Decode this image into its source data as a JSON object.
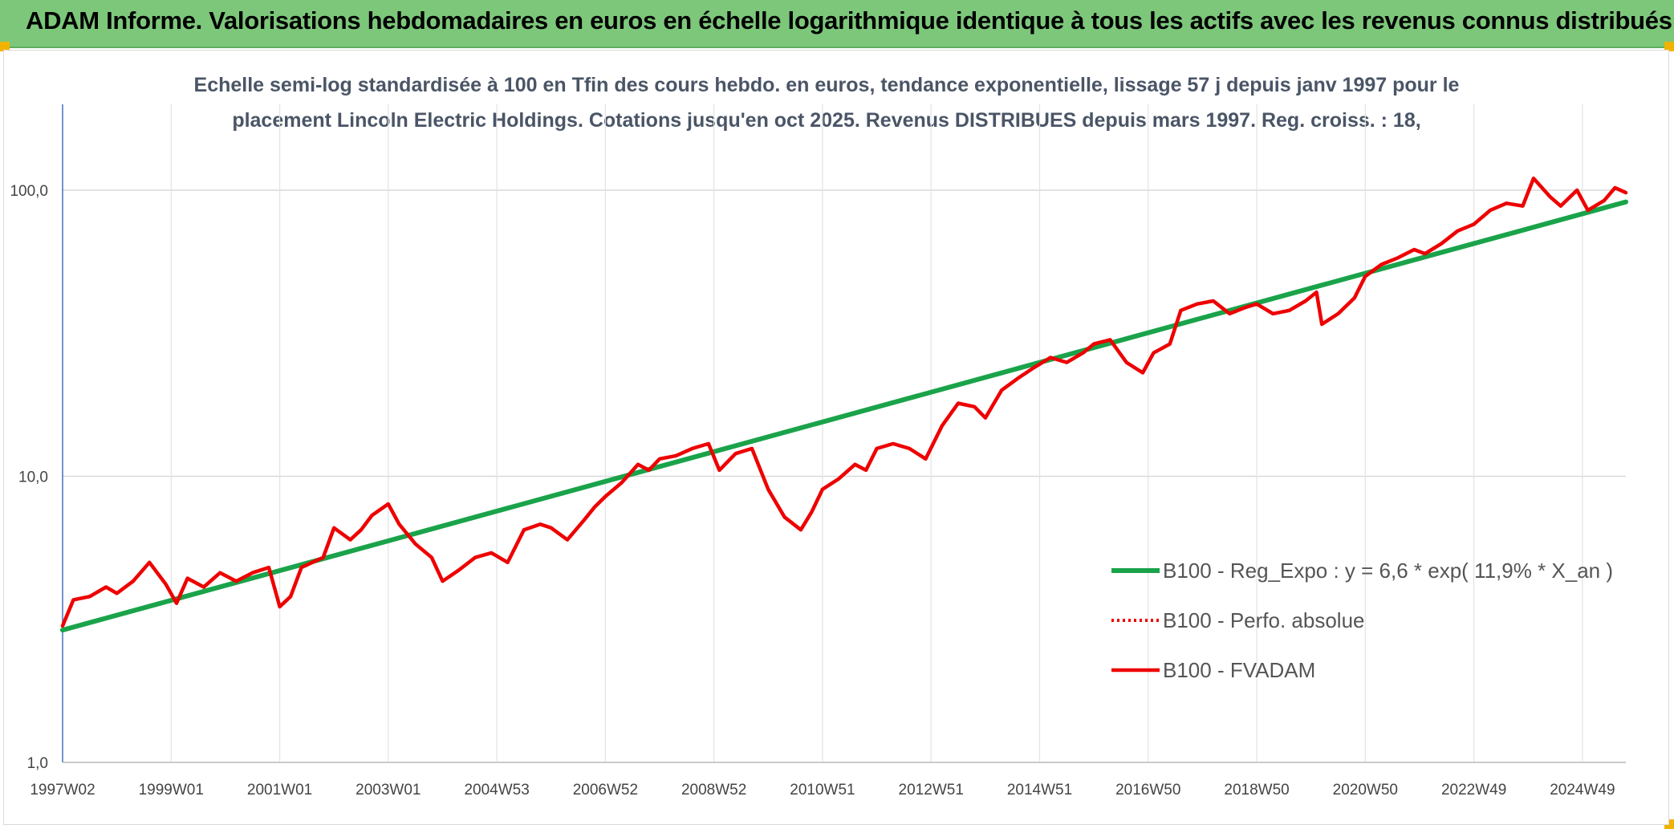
{
  "banner": {
    "title": "ADAM Informe. Valorisations hebdomadaires en euros en échelle logarithmique identique à tous les actifs avec les revenus connus distribués"
  },
  "colors": {
    "banner_bg": "#7dc77b",
    "trend": "#1aa34a",
    "series": "#ee0000",
    "corner": "#f0b400"
  },
  "chart_data": {
    "type": "line",
    "title": "Echelle semi-log standardisée à 100 en Tfin des cours hebdo. en euros, tendance exponentielle, lissage 57 j depuis janv 1997 pour le placement Lincoln Electric Holdings. Cotations jusqu'en oct 2025. Revenus DISTRIBUES depuis mars 1997. Reg. croiss. : 18,",
    "title_lines": [
      "Echelle semi-log standardisée à 100 en Tfin des cours hebdo. en euros, tendance exponentielle, lissage 57 j depuis janv 1997 pour le",
      "placement Lincoln Electric Holdings. Cotations jusqu'en oct 2025. Revenus DISTRIBUES depuis mars 1997. Reg. croiss. : 18,"
    ],
    "y_scale": "log",
    "ylim": [
      1,
      100
    ],
    "y_ticks": [
      {
        "value": 1,
        "label": "1,0"
      },
      {
        "value": 10,
        "label": "10,0"
      },
      {
        "value": 100,
        "label": "100,0"
      }
    ],
    "xlim": [
      1997.0,
      2025.8
    ],
    "x_ticks": [
      {
        "value": 1997.0,
        "label": "1997W02"
      },
      {
        "value": 1999.0,
        "label": "1999W01"
      },
      {
        "value": 2001.0,
        "label": "2001W01"
      },
      {
        "value": 2003.0,
        "label": "2003W01"
      },
      {
        "value": 2005.0,
        "label": "2004W53"
      },
      {
        "value": 2007.0,
        "label": "2006W52"
      },
      {
        "value": 2009.0,
        "label": "2008W52"
      },
      {
        "value": 2011.0,
        "label": "2010W51"
      },
      {
        "value": 2013.0,
        "label": "2012W51"
      },
      {
        "value": 2015.0,
        "label": "2014W51"
      },
      {
        "value": 2017.0,
        "label": "2016W50"
      },
      {
        "value": 2019.0,
        "label": "2018W50"
      },
      {
        "value": 2021.0,
        "label": "2020W50"
      },
      {
        "value": 2023.0,
        "label": "2022W49"
      },
      {
        "value": 2025.0,
        "label": "2024W49"
      }
    ],
    "grid": true,
    "legend_position": "lower-right",
    "series": [
      {
        "name": "B100 - Reg_Expo : y = 6,6 * exp( 11,9% *  X_an )",
        "style": "solid-thick",
        "color": "#1aa34a",
        "x": [
          1997.0,
          2025.8
        ],
        "y": [
          2.9,
          91.0
        ]
      },
      {
        "name": "B100 - Perfo. absolue",
        "style": "dotted",
        "color": "#ee0000",
        "x": [],
        "y": []
      },
      {
        "name": "B100 - FVADAM",
        "style": "solid",
        "color": "#ee0000",
        "x": [
          1997.0,
          1997.2,
          1997.5,
          1997.8,
          1998.0,
          1998.3,
          1998.6,
          1998.9,
          1999.1,
          1999.3,
          1999.6,
          1999.9,
          2000.2,
          2000.5,
          2000.8,
          2001.0,
          2001.2,
          2001.4,
          2001.6,
          2001.8,
          2002.0,
          2002.3,
          2002.5,
          2002.7,
          2003.0,
          2003.2,
          2003.5,
          2003.8,
          2004.0,
          2004.3,
          2004.6,
          2004.9,
          2005.2,
          2005.5,
          2005.8,
          2006.0,
          2006.3,
          2006.6,
          2006.8,
          2007.0,
          2007.3,
          2007.6,
          2007.8,
          2008.0,
          2008.3,
          2008.6,
          2008.9,
          2009.1,
          2009.4,
          2009.7,
          2010.0,
          2010.3,
          2010.6,
          2010.8,
          2011.0,
          2011.3,
          2011.6,
          2011.8,
          2012.0,
          2012.3,
          2012.6,
          2012.9,
          2013.2,
          2013.5,
          2013.8,
          2014.0,
          2014.3,
          2014.6,
          2014.9,
          2015.2,
          2015.5,
          2015.8,
          2016.0,
          2016.3,
          2016.6,
          2016.9,
          2017.1,
          2017.4,
          2017.6,
          2017.9,
          2018.2,
          2018.5,
          2018.8,
          2019.0,
          2019.3,
          2019.6,
          2019.9,
          2020.1,
          2020.2,
          2020.5,
          2020.8,
          2021.0,
          2021.3,
          2021.6,
          2021.9,
          2022.1,
          2022.4,
          2022.7,
          2023.0,
          2023.3,
          2023.6,
          2023.9,
          2024.1,
          2024.4,
          2024.6,
          2024.9,
          2025.1,
          2025.4,
          2025.6,
          2025.8
        ],
        "y": [
          3.0,
          3.7,
          3.8,
          4.1,
          3.9,
          4.3,
          5.0,
          4.2,
          3.6,
          4.4,
          4.1,
          4.6,
          4.3,
          4.6,
          4.8,
          3.5,
          3.8,
          4.8,
          5.0,
          5.2,
          6.6,
          6.0,
          6.5,
          7.3,
          8.0,
          6.8,
          5.8,
          5.2,
          4.3,
          4.7,
          5.2,
          5.4,
          5.0,
          6.5,
          6.8,
          6.6,
          6.0,
          7.0,
          7.8,
          8.5,
          9.5,
          11.0,
          10.5,
          11.5,
          11.8,
          12.5,
          13.0,
          10.5,
          12.0,
          12.5,
          9.0,
          7.2,
          6.5,
          7.5,
          9.0,
          9.8,
          11.0,
          10.5,
          12.5,
          13.0,
          12.5,
          11.5,
          15.0,
          18.0,
          17.5,
          16.0,
          20.0,
          22.0,
          24.0,
          26.0,
          25.0,
          27.0,
          29.0,
          30.0,
          25.0,
          23.0,
          27.0,
          29.0,
          38.0,
          40.0,
          41.0,
          37.0,
          39.0,
          40.0,
          37.0,
          38.0,
          41.0,
          44.0,
          34.0,
          37.0,
          42.0,
          50.0,
          55.0,
          58.0,
          62.0,
          60.0,
          65.0,
          72.0,
          76.0,
          85.0,
          90.0,
          88.0,
          110.0,
          95.0,
          88.0,
          100.0,
          85.0,
          92.0,
          102.0,
          98.0
        ]
      }
    ]
  }
}
